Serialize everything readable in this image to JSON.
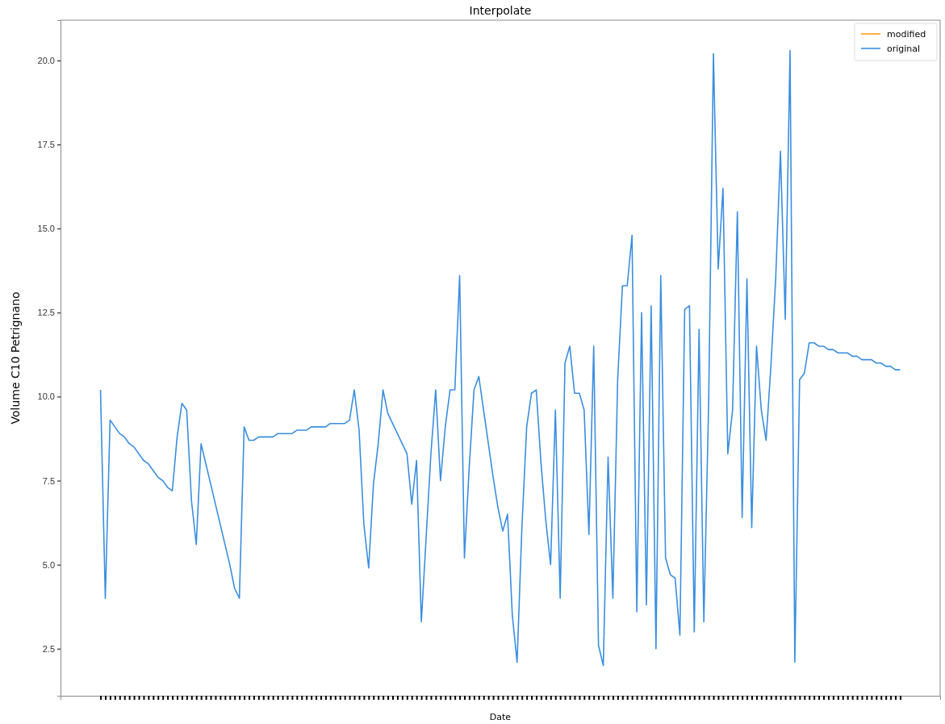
{
  "chart_data": {
    "type": "line",
    "title": "Interpolate",
    "xlabel": "Date",
    "ylabel": "Volume C10 Petrignano",
    "categories": [
      null,
      null,
      null,
      null,
      null,
      null,
      null,
      null,
      null,
      null,
      null,
      null,
      null,
      null,
      null,
      null,
      null,
      null,
      null,
      null,
      null,
      null,
      null,
      null,
      null,
      null,
      null,
      null,
      null,
      null,
      null,
      null,
      null,
      null,
      null,
      null,
      null,
      null,
      null,
      null,
      null,
      null,
      null,
      null,
      null,
      null,
      null,
      null,
      null,
      null,
      null,
      null,
      null,
      null,
      null,
      null,
      null,
      null,
      null,
      null,
      null,
      null,
      null,
      null,
      null,
      null,
      null,
      null,
      null,
      null,
      null,
      null,
      null,
      null,
      null,
      null,
      null,
      null,
      null,
      null,
      null,
      null,
      null,
      null,
      null,
      null,
      null,
      null,
      null,
      null,
      null,
      null,
      null,
      null,
      null,
      null,
      null,
      null,
      null,
      null,
      null,
      null,
      null,
      null,
      null,
      null,
      null,
      null,
      null,
      null,
      null,
      null,
      null,
      null,
      null,
      null,
      null,
      null,
      null,
      null,
      null,
      null,
      null,
      null,
      null,
      null,
      null,
      null,
      null,
      null,
      null,
      null,
      null,
      null,
      null,
      null,
      null,
      null,
      null,
      null,
      null,
      null,
      null,
      null,
      null,
      null,
      null,
      null,
      null,
      null,
      null,
      null,
      null,
      null,
      null,
      null,
      null,
      null,
      null,
      null,
      null,
      null,
      null,
      null,
      null,
      null,
      null,
      null
    ],
    "series": [
      {
        "name": "modified",
        "color": "#ff9f1a",
        "values": [
          null,
          null,
          null,
          null,
          null,
          null,
          null,
          null,
          null,
          null,
          null,
          null,
          null,
          null,
          null,
          null,
          null,
          null,
          null,
          null,
          null,
          null,
          null,
          null,
          null,
          null,
          null,
          null,
          null,
          null,
          null,
          null,
          null,
          null,
          null,
          null,
          null,
          null,
          null,
          null,
          null,
          null,
          null,
          null,
          null,
          null,
          null,
          null,
          null,
          null,
          null,
          null,
          null,
          null,
          null,
          null,
          null,
          null,
          null,
          null,
          null,
          null,
          null,
          null,
          null,
          null,
          null,
          null,
          null,
          null,
          null,
          null,
          null,
          null,
          null,
          null,
          null,
          null,
          null,
          null,
          null,
          null,
          null,
          null,
          null,
          null,
          null,
          null,
          null,
          null,
          null,
          null,
          null,
          null,
          null,
          null,
          null,
          null,
          null,
          null,
          null,
          null,
          null,
          null,
          null,
          null,
          null,
          null,
          null,
          null,
          null,
          null,
          null,
          null,
          null,
          null,
          null,
          null,
          null,
          null,
          null,
          null,
          null,
          null,
          null,
          null,
          null,
          null,
          null,
          null,
          null,
          null,
          null,
          null,
          null,
          null,
          null,
          null,
          null,
          null,
          null,
          null,
          null,
          null,
          null,
          null,
          null,
          null,
          null,
          null,
          null,
          null,
          null,
          null,
          null,
          null,
          null,
          null,
          null,
          null,
          null,
          null,
          null,
          null,
          null,
          null,
          null,
          null
        ]
      },
      {
        "name": "original",
        "color": "#3b8ee0",
        "values": [
          10.2,
          4.0,
          9.3,
          9.1,
          8.9,
          8.8,
          8.6,
          8.5,
          8.3,
          8.1,
          8.0,
          7.8,
          7.6,
          7.5,
          7.3,
          7.2,
          8.8,
          9.8,
          9.6,
          6.9,
          5.6,
          8.6,
          8.0,
          7.4,
          6.8,
          6.2,
          5.6,
          5.0,
          4.3,
          4.0,
          9.1,
          8.7,
          8.7,
          8.8,
          8.8,
          8.8,
          8.8,
          8.9,
          8.9,
          8.9,
          8.9,
          9.0,
          9.0,
          9.0,
          9.1,
          9.1,
          9.1,
          9.1,
          9.2,
          9.2,
          9.2,
          9.2,
          9.3,
          10.2,
          9.0,
          6.2,
          4.9,
          7.4,
          8.6,
          10.2,
          9.5,
          9.2,
          8.9,
          8.6,
          8.3,
          6.8,
          8.1,
          3.3,
          5.8,
          8.3,
          10.2,
          7.5,
          9.1,
          10.2,
          10.2,
          13.6,
          5.2,
          7.9,
          10.2,
          10.6,
          9.6,
          8.6,
          7.6,
          6.7,
          6.0,
          6.5,
          3.5,
          2.1,
          6.1,
          9.1,
          10.1,
          10.2,
          8.0,
          6.3,
          5.0,
          9.6,
          4.0,
          11.0,
          11.5,
          10.1,
          10.1,
          9.6,
          5.9,
          11.5,
          2.6,
          2.0,
          8.2,
          4.0,
          10.5,
          13.3,
          13.3,
          14.8,
          3.6,
          12.5,
          3.8,
          12.7,
          2.5,
          13.6,
          5.2,
          4.7,
          4.6,
          2.9,
          12.6,
          12.7,
          3.0,
          12.0,
          3.3,
          9.8,
          20.2,
          13.8,
          16.2,
          8.3,
          9.6,
          15.5,
          6.4,
          13.5,
          6.1,
          11.5,
          9.6,
          8.7,
          10.9,
          13.5,
          17.3,
          12.3,
          20.3,
          2.1,
          10.5,
          10.7,
          11.6,
          11.6,
          11.5,
          11.5,
          11.4,
          11.4,
          11.3,
          11.3,
          11.3,
          11.2,
          11.2,
          11.1,
          11.1,
          11.1,
          11.0,
          11.0,
          10.9,
          10.9,
          10.8,
          10.8
        ]
      }
    ],
    "ylim": [
      1.1,
      21.2
    ],
    "yticks": [
      {
        "value": 2.5,
        "label": "2.5"
      },
      {
        "value": 5,
        "label": "5.0"
      },
      {
        "value": 7.5,
        "label": "7.5"
      },
      {
        "value": 10,
        "label": "10.0"
      },
      {
        "value": 12.5,
        "label": "12.5"
      },
      {
        "value": 15,
        "label": "15.0"
      },
      {
        "value": 17.5,
        "label": "17.5"
      },
      {
        "value": 20,
        "label": "20.0"
      }
    ],
    "tick_labels": "y",
    "legend": "top right"
  }
}
